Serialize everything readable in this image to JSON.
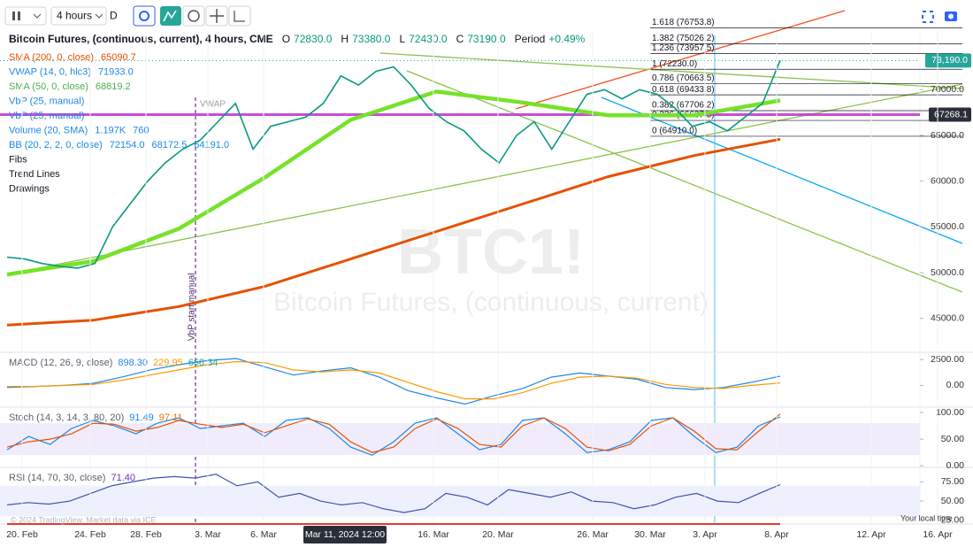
{
  "toolbar": {
    "interval": "4 hours",
    "chart_type": "D"
  },
  "legend": {
    "symbol": "Bitcoin Futures, (continuous, current), 4 hours, CME",
    "ohlc": [
      {
        "label": "O",
        "value": "72830.0"
      },
      {
        "label": "H",
        "value": "73380.0"
      },
      {
        "label": "L",
        "value": "72430.0"
      },
      {
        "label": "C",
        "value": "73190.0"
      }
    ],
    "period_label": "Period",
    "period_change": "+0.49%",
    "indicators": [
      {
        "name": "SMA (200, 0, close)",
        "values": [
          "65090.7"
        ],
        "color": "#e65100"
      },
      {
        "name": "VWAP (14, 0, hlc3)",
        "values": [
          "71933.0"
        ],
        "color": "#1e88e5"
      },
      {
        "name": "SMA (50, 0, close)",
        "values": [
          "68819.2"
        ],
        "color": "#4caf50"
      },
      {
        "name": "VbP (25, manual)",
        "color": "#1e88e5"
      },
      {
        "name": "VbP (25, manual)",
        "color": "#1e88e5"
      },
      {
        "name": "Volume (20, SMA)",
        "values": [
          "1.197K",
          "760"
        ],
        "color": "#1e88e5"
      },
      {
        "name": "BB (20, 2, 2, 0, close)",
        "values": [
          "72154.0",
          "68172.5",
          "64191.0"
        ],
        "color": "#1e88e5"
      }
    ],
    "groups": [
      "Fibs",
      "Trend Lines",
      "Drawings"
    ]
  },
  "watermark": {
    "symbol": "BTC1!",
    "description": "Bitcoin Futures, (continuous, current)"
  },
  "price_chart": {
    "ylim": [
      41300,
      79800
    ],
    "yticks": [
      {
        "value": 45000,
        "label": "45000.0"
      },
      {
        "value": 50000,
        "label": "50000.0"
      },
      {
        "value": 55000,
        "label": "55000.0"
      },
      {
        "value": 60000,
        "label": "60000.0"
      },
      {
        "value": 65000,
        "label": "65000.0"
      },
      {
        "value": 70000,
        "label": "70000.0"
      }
    ],
    "close": {
      "color": "#089981",
      "values": [
        51700,
        51500,
        51000,
        50700,
        50500,
        51000,
        55000,
        57500,
        60000,
        62000,
        63500,
        64500,
        66500,
        68500,
        63500,
        66000,
        66500,
        67000,
        68500,
        71500,
        70500,
        72000,
        72500,
        70500,
        68000,
        66500,
        65500,
        63500,
        62000,
        65000,
        66500,
        63500,
        66500,
        69500,
        70000,
        69000,
        70000,
        69500,
        68000,
        66000,
        66500,
        65500,
        67000,
        68500,
        73190
      ]
    },
    "sma200": {
      "color": "#e65100",
      "values": [
        44270,
        44800,
        46300,
        48500,
        51500,
        54500,
        57500,
        60500,
        62800,
        64580
      ]
    },
    "sma50": {
      "color": "#76e22a",
      "values": [
        49800,
        51250,
        54800,
        60400,
        66700,
        69800,
        68600,
        67200,
        67200,
        68819.2
      ]
    },
    "fib_levels": [
      {
        "label": "1.618 (76753.8)",
        "value": 76753.8
      },
      {
        "label": "1.382 (75026.2)",
        "value": 75026.2
      },
      {
        "label": "1.236 (73957.5)",
        "value": 73957.5
      },
      {
        "label": "1 (72230.0)",
        "value": 72230.0
      },
      {
        "label": "0.786 (70663.5)",
        "value": 70663.5
      },
      {
        "label": "0.618 (69433.8)",
        "value": 69433.8
      },
      {
        "label": "0.382 (67706.2)",
        "value": 67706.2
      },
      {
        "label": "0.236 (66637.5)",
        "value": 66637.5
      },
      {
        "label": "0 (64910.0)",
        "value": 64910.0
      }
    ],
    "last_price": {
      "value": 73190,
      "label": "73,190.0",
      "color": "#26a69a"
    },
    "vbp_poc": {
      "value": 67268.1,
      "label": "67268.1",
      "color": "#c030d0"
    },
    "annotations": [
      "VWAP",
      "VbP start manual"
    ]
  },
  "macd": {
    "legend": "MACD (12, 26, 9, close)",
    "legend_values": [
      {
        "text": "898.30",
        "color": "#1e88e5"
      },
      {
        "text": "229.95",
        "color": "#ff9800"
      },
      {
        "text": "668.34",
        "color": "#26a69a"
      }
    ],
    "ylim": [
      -2100,
      3200
    ],
    "yticks": [
      {
        "value": 2500,
        "label": "2500.00"
      },
      {
        "value": 0,
        "label": "0.00"
      }
    ],
    "series": [
      {
        "color": "#1e88e5",
        "values": [
          -200,
          -100,
          0,
          200,
          800,
          1500,
          2000,
          2400,
          2600,
          1800,
          1000,
          1400,
          1700,
          800,
          -500,
          -1200,
          -1800,
          -1000,
          -300,
          800,
          1200,
          900,
          600,
          -200,
          -400,
          -200,
          300,
          898.3
        ]
      },
      {
        "color": "#ff9800",
        "values": [
          -100,
          -100,
          0,
          100,
          500,
          1000,
          1500,
          2000,
          2300,
          2200,
          1500,
          1300,
          1500,
          1200,
          300,
          -600,
          -1300,
          -1300,
          -700,
          200,
          800,
          900,
          700,
          100,
          -200,
          -300,
          0,
          229.95
        ]
      }
    ]
  },
  "stoch": {
    "legend": "Stoch (14, 3, 14, 3, 80, 20)",
    "legend_values": [
      {
        "text": "91.49",
        "color": "#1e88e5"
      },
      {
        "text": "97.11",
        "color": "#ff6d00"
      }
    ],
    "ylim": [
      -3,
      110
    ],
    "band": [
      20,
      80
    ],
    "band_color": "#f1ecfb",
    "yticks": [
      {
        "value": 100,
        "label": "100.00"
      },
      {
        "value": 50,
        "label": "50.00"
      },
      {
        "value": 0,
        "label": "0.00"
      }
    ],
    "series": [
      {
        "color": "#1e88e5",
        "values": [
          30,
          55,
          40,
          70,
          85,
          75,
          60,
          80,
          90,
          70,
          75,
          80,
          55,
          85,
          90,
          70,
          35,
          20,
          45,
          80,
          90,
          60,
          30,
          40,
          85,
          90,
          60,
          25,
          30,
          45,
          85,
          90,
          55,
          25,
          35,
          75,
          91.49
        ]
      },
      {
        "color": "#e65100",
        "values": [
          35,
          45,
          50,
          60,
          80,
          78,
          65,
          72,
          85,
          78,
          72,
          78,
          62,
          75,
          88,
          78,
          45,
          25,
          35,
          70,
          88,
          70,
          40,
          35,
          75,
          90,
          70,
          35,
          28,
          40,
          75,
          90,
          65,
          32,
          30,
          65,
          97.11
        ]
      }
    ]
  },
  "rsi": {
    "legend": "RSI (14, 70, 30, close)",
    "legend_values": [
      {
        "text": "71.40",
        "color": "#673ab7"
      }
    ],
    "ylim": [
      20,
      94
    ],
    "band": [
      30,
      70
    ],
    "band_color": "#eef1fd",
    "yticks": [
      {
        "value": 75,
        "label": "75.00"
      },
      {
        "value": 50,
        "label": "50.00"
      },
      {
        "value": 25,
        "label": "25.00"
      }
    ],
    "series": [
      {
        "color": "#3f51b5",
        "values": [
          45,
          48,
          46,
          50,
          60,
          70,
          75,
          80,
          82,
          80,
          85,
          70,
          75,
          55,
          60,
          50,
          45,
          48,
          40,
          35,
          40,
          60,
          55,
          45,
          65,
          60,
          55,
          62,
          50,
          48,
          40,
          45,
          55,
          60,
          50,
          48,
          60,
          71.4
        ]
      }
    ]
  },
  "x_axis": {
    "ticks": [
      "20. Feb",
      "24. Feb",
      "28. Feb",
      "3. Mar",
      "6. Mar",
      "16. Mar",
      "20. Mar",
      "26. Mar",
      "30. Mar",
      "3. Apr",
      "8. Apr",
      "12. Apr",
      "16. Apr"
    ],
    "cursor_label": "Mar 11, 2024 12:00"
  },
  "footer": {
    "attribution": "© 2024 TradingView, Market data via ICE",
    "local_time": "Your local time"
  }
}
